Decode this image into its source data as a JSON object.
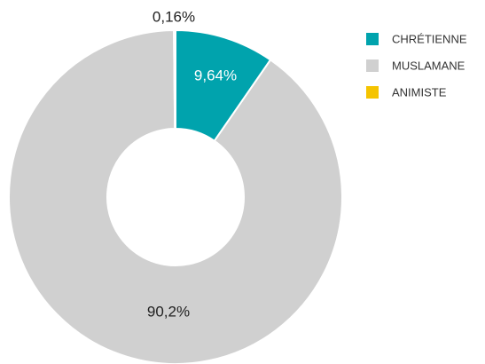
{
  "chart_data": {
    "type": "donut",
    "categories": [
      "CHRÉTIENNE",
      "MUSLAMANE",
      "ANIMISTE"
    ],
    "values": [
      9.64,
      90.2,
      0.16
    ],
    "value_labels": [
      "9,64%",
      "90,2%",
      "0,16%"
    ],
    "colors": [
      "#00a3ad",
      "#d0d0d0",
      "#f5c400"
    ],
    "legend": "right"
  }
}
